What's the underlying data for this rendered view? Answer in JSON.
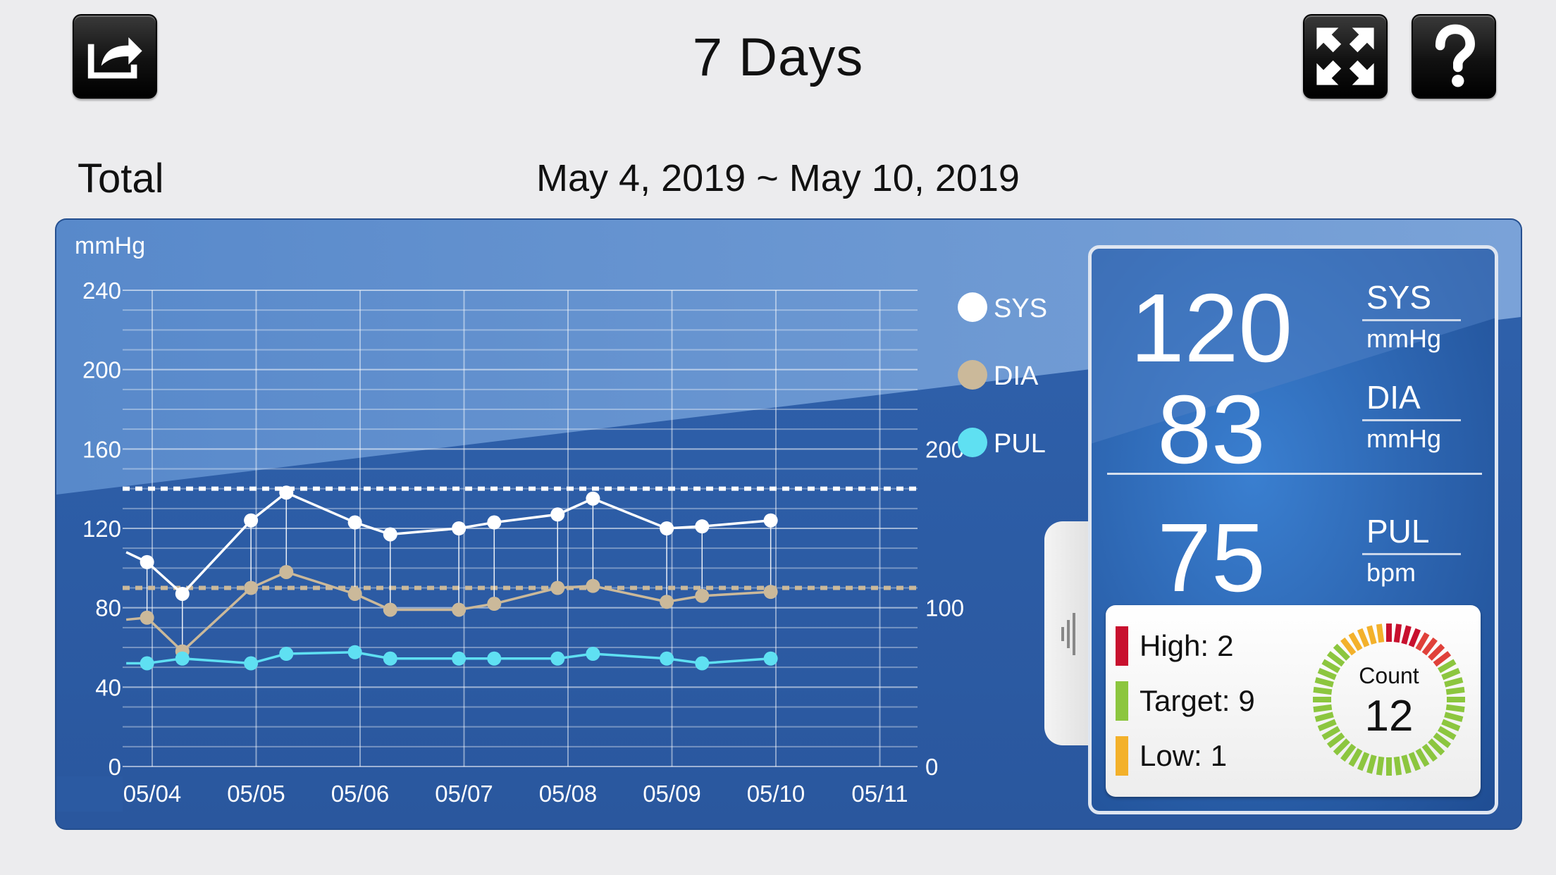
{
  "header": {
    "title": "7 Days",
    "share_icon": "share-export-icon",
    "expand_icon": "expand-arrows-icon",
    "help_icon": "question-mark-icon"
  },
  "summary": {
    "label": "Total",
    "date_range": "May 4, 2019 ~ May 10, 2019"
  },
  "legend": [
    {
      "name": "SYS",
      "color": "#ffffff"
    },
    {
      "name": "DIA",
      "color": "#cbb99a"
    },
    {
      "name": "PUL",
      "color": "#5fe0f2"
    }
  ],
  "chart_data": {
    "type": "line",
    "ylabel": "mmHg",
    "ylim": [
      0,
      240
    ],
    "y_ticks": [
      "0",
      "40",
      "80",
      "120",
      "160",
      "200",
      "240"
    ],
    "y2lim": [
      0,
      300
    ],
    "y2_ticks": [
      "0",
      "100",
      "200"
    ],
    "x_range": [
      0,
      7
    ],
    "x_ticks": [
      "05/04",
      "05/05",
      "05/06",
      "05/07",
      "05/08",
      "05/09",
      "05/10",
      "05/11"
    ],
    "thresholds": {
      "sys": 140,
      "dia": 90
    },
    "x": [
      -0.25,
      -0.05,
      0.29,
      0.95,
      1.29,
      1.95,
      2.29,
      2.95,
      3.29,
      3.9,
      4.24,
      4.95,
      5.29,
      5.95
    ],
    "series": [
      {
        "name": "SYS",
        "axis": "left",
        "values": [
          108,
          103,
          87,
          124,
          138,
          123,
          117,
          120,
          123,
          127,
          135,
          120,
          121,
          124
        ]
      },
      {
        "name": "DIA",
        "axis": "left",
        "values": [
          74,
          75,
          58,
          90,
          98,
          87,
          79,
          79,
          82,
          90,
          91,
          83,
          86,
          88
        ]
      },
      {
        "name": "PUL",
        "axis": "right",
        "values": [
          65,
          65,
          68,
          65,
          71,
          72,
          68,
          68,
          68,
          68,
          71,
          68,
          65,
          68
        ]
      }
    ]
  },
  "reading": {
    "sys": {
      "value": "120",
      "label": "SYS",
      "unit": "mmHg"
    },
    "dia": {
      "value": "83",
      "label": "DIA",
      "unit": "mmHg"
    },
    "pul": {
      "value": "75",
      "label": "PUL",
      "unit": "bpm"
    }
  },
  "counts": {
    "high": {
      "label": "High:",
      "value": "2",
      "color": "#c8102e"
    },
    "target": {
      "label": "Target:",
      "value": "9",
      "color": "#8cc63f"
    },
    "low": {
      "label": "Low:",
      "value": "1",
      "color": "#f3b12b"
    },
    "gauge_title": "Count",
    "total": "12"
  }
}
